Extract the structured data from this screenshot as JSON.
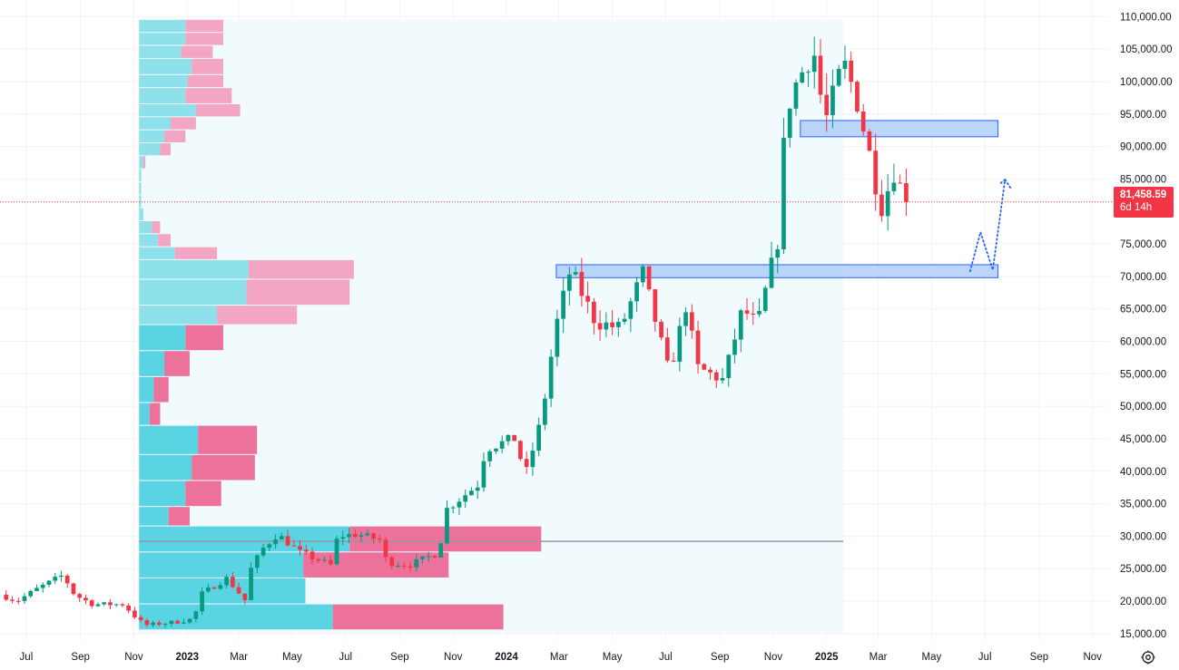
{
  "chart_data": {
    "type": "candlestick",
    "timeframe": "weekly",
    "y_axis": {
      "ticks": [
        "110,000.00",
        "105,000.00",
        "100,000.00",
        "95,000.00",
        "90,000.00",
        "85,000.00",
        "75,000.00",
        "70,000.00",
        "65,000.00",
        "60,000.00",
        "55,000.00",
        "50,000.00",
        "45,000.00",
        "40,000.00",
        "35,000.00",
        "30,000.00",
        "25,000.00",
        "20,000.00",
        "15,000.00"
      ],
      "tick_values": [
        110000,
        105000,
        100000,
        95000,
        90000,
        85000,
        75000,
        70000,
        65000,
        60000,
        55000,
        50000,
        45000,
        40000,
        35000,
        30000,
        25000,
        20000,
        15000
      ],
      "range": [
        14000,
        112000
      ],
      "position": "right"
    },
    "x_axis": {
      "labels": [
        {
          "text": "Jul",
          "date": "2022-07-01"
        },
        {
          "text": "Sep",
          "date": "2022-09-01"
        },
        {
          "text": "Nov",
          "date": "2022-11-01"
        },
        {
          "text": "2023",
          "date": "2023-01-01",
          "bold": true
        },
        {
          "text": "Mar",
          "date": "2023-03-01"
        },
        {
          "text": "May",
          "date": "2023-05-01"
        },
        {
          "text": "Jul",
          "date": "2023-07-01"
        },
        {
          "text": "Sep",
          "date": "2023-09-01"
        },
        {
          "text": "Nov",
          "date": "2023-11-01"
        },
        {
          "text": "2024",
          "date": "2024-01-01",
          "bold": true
        },
        {
          "text": "Mar",
          "date": "2024-03-01"
        },
        {
          "text": "May",
          "date": "2024-05-01"
        },
        {
          "text": "Jul",
          "date": "2024-07-01"
        },
        {
          "text": "Sep",
          "date": "2024-09-01"
        },
        {
          "text": "Nov",
          "date": "2024-11-01"
        },
        {
          "text": "2025",
          "date": "2025-01-01",
          "bold": true
        },
        {
          "text": "Mar",
          "date": "2025-03-01"
        },
        {
          "text": "May",
          "date": "2025-05-01"
        },
        {
          "text": "Jul",
          "date": "2025-07-01"
        },
        {
          "text": "Sep",
          "date": "2025-09-01"
        },
        {
          "text": "Nov",
          "date": "2025-11-01"
        }
      ],
      "range": [
        "2022-06-01",
        "2025-11-20"
      ]
    },
    "current_price": {
      "label": "81,458.59",
      "value": 81458.59,
      "countdown": "6d 14h"
    },
    "candle_anchors": [
      [
        "2022-06-01",
        21000
      ],
      [
        "2022-06-20",
        20000
      ],
      [
        "2022-07-15",
        22000
      ],
      [
        "2022-08-12",
        24000
      ],
      [
        "2022-08-25",
        21000
      ],
      [
        "2022-09-15",
        19500
      ],
      [
        "2022-10-20",
        19500
      ],
      [
        "2022-11-07",
        17000
      ],
      [
        "2022-11-15",
        16300
      ],
      [
        "2022-12-20",
        16800
      ],
      [
        "2023-01-09",
        17300
      ],
      [
        "2023-01-16",
        21000
      ],
      [
        "2023-02-15",
        23500
      ],
      [
        "2023-03-09",
        20000
      ],
      [
        "2023-03-15",
        25000
      ],
      [
        "2023-03-28",
        28000
      ],
      [
        "2023-04-14",
        30300
      ],
      [
        "2023-05-10",
        27500
      ],
      [
        "2023-06-15",
        25500
      ],
      [
        "2023-06-22",
        30000
      ],
      [
        "2023-07-14",
        30300
      ],
      [
        "2023-08-10",
        29400
      ],
      [
        "2023-08-17",
        26000
      ],
      [
        "2023-09-11",
        25500
      ],
      [
        "2023-10-16",
        27500
      ],
      [
        "2023-10-23",
        34000
      ],
      [
        "2023-11-30",
        38000
      ],
      [
        "2023-12-08",
        43500
      ],
      [
        "2024-01-10",
        45000
      ],
      [
        "2024-01-23",
        39500
      ],
      [
        "2024-02-10",
        48000
      ],
      [
        "2024-02-26",
        62000
      ],
      [
        "2024-03-14",
        71000
      ],
      [
        "2024-04-12",
        63000
      ],
      [
        "2024-05-10",
        62000
      ],
      [
        "2024-06-05",
        70500
      ],
      [
        "2024-07-05",
        55000
      ],
      [
        "2024-07-25",
        66000
      ],
      [
        "2024-08-05",
        56000
      ],
      [
        "2024-09-05",
        54000
      ],
      [
        "2024-09-27",
        65000
      ],
      [
        "2024-10-14",
        62500
      ],
      [
        "2024-10-28",
        70500
      ],
      [
        "2024-11-07",
        76000
      ],
      [
        "2024-11-13",
        90000
      ],
      [
        "2024-11-21",
        98000
      ],
      [
        "2024-12-17",
        105000
      ],
      [
        "2024-12-30",
        93500
      ],
      [
        "2025-01-20",
        103000
      ],
      [
        "2025-02-03",
        98000
      ],
      [
        "2025-02-24",
        86000
      ],
      [
        "2025-03-03",
        80000
      ],
      [
        "2025-03-20",
        86500
      ],
      [
        "2025-03-28",
        83000
      ],
      [
        "2025-04-04",
        81458.59
      ]
    ],
    "volume_profile": {
      "range_start": "2022-11-07",
      "range_end": "2025-01-20",
      "price_low": 15000,
      "price_high": 109500,
      "poc_price": 29200,
      "rows": [
        {
          "price_low": 107500,
          "price_high": 109500,
          "up": 0.22,
          "down": 0.18
        },
        {
          "price_low": 105500,
          "price_high": 107500,
          "up": 0.22,
          "down": 0.18
        },
        {
          "price_low": 103500,
          "price_high": 105500,
          "up": 0.2,
          "down": 0.15
        },
        {
          "price_low": 101000,
          "price_high": 103500,
          "up": 0.25,
          "down": 0.15
        },
        {
          "price_low": 99000,
          "price_high": 101000,
          "up": 0.23,
          "down": 0.17
        },
        {
          "price_low": 96500,
          "price_high": 99000,
          "up": 0.22,
          "down": 0.22
        },
        {
          "price_low": 94500,
          "price_high": 96500,
          "up": 0.27,
          "down": 0.21
        },
        {
          "price_low": 92500,
          "price_high": 94500,
          "up": 0.15,
          "down": 0.12
        },
        {
          "price_low": 90500,
          "price_high": 92500,
          "up": 0.12,
          "down": 0.1
        },
        {
          "price_low": 88500,
          "price_high": 90500,
          "up": 0.1,
          "down": 0.05
        },
        {
          "price_low": 86500,
          "price_high": 88500,
          "up": 0.02,
          "down": 0.01
        },
        {
          "price_low": 84500,
          "price_high": 86500,
          "up": 0.01,
          "down": 0.0
        },
        {
          "price_low": 82500,
          "price_high": 84500,
          "up": 0.01,
          "down": 0.0
        },
        {
          "price_low": 80500,
          "price_high": 82500,
          "up": 0.01,
          "down": 0.0
        },
        {
          "price_low": 78500,
          "price_high": 80500,
          "up": 0.02,
          "down": 0.0
        },
        {
          "price_low": 76500,
          "price_high": 78500,
          "up": 0.06,
          "down": 0.04
        },
        {
          "price_low": 74500,
          "price_high": 76500,
          "up": 0.09,
          "down": 0.06
        },
        {
          "price_low": 72500,
          "price_high": 74500,
          "up": 0.17,
          "down": 0.2
        },
        {
          "price_low": 69500,
          "price_high": 72500,
          "up": 0.52,
          "down": 0.5
        },
        {
          "price_low": 65500,
          "price_high": 69500,
          "up": 0.51,
          "down": 0.49
        },
        {
          "price_low": 62500,
          "price_high": 65500,
          "up": 0.37,
          "down": 0.38
        },
        {
          "price_low": 58500,
          "price_high": 62500,
          "up": 0.22,
          "down": 0.18
        },
        {
          "price_low": 54500,
          "price_high": 58500,
          "up": 0.12,
          "down": 0.12
        },
        {
          "price_low": 50500,
          "price_high": 54500,
          "up": 0.07,
          "down": 0.07
        },
        {
          "price_low": 47000,
          "price_high": 50500,
          "up": 0.05,
          "down": 0.05
        },
        {
          "price_low": 42500,
          "price_high": 47000,
          "up": 0.28,
          "down": 0.28
        },
        {
          "price_low": 38500,
          "price_high": 42500,
          "up": 0.25,
          "down": 0.3
        },
        {
          "price_low": 34500,
          "price_high": 38500,
          "up": 0.22,
          "down": 0.17
        },
        {
          "price_low": 31500,
          "price_high": 34500,
          "up": 0.14,
          "down": 0.1
        },
        {
          "price_low": 27500,
          "price_high": 31500,
          "up": 1.0,
          "down": 0.91
        },
        {
          "price_low": 23500,
          "price_high": 27500,
          "up": 0.78,
          "down": 0.69
        },
        {
          "price_low": 19500,
          "price_high": 23500,
          "up": 0.79,
          "down": 0.0
        },
        {
          "price_low": 15500,
          "price_high": 19500,
          "up": 0.92,
          "down": 0.81
        }
      ]
    },
    "zones": [
      {
        "price_low": 91500,
        "price_high": 94000,
        "start": "2024-12-02",
        "end": "2025-07-16"
      },
      {
        "price_low": 69800,
        "price_high": 71800,
        "start": "2024-02-27",
        "end": "2025-07-16"
      }
    ],
    "projection_path": [
      [
        "2025-06-14",
        70800
      ],
      [
        "2025-06-26",
        76800
      ],
      [
        "2025-07-10",
        71000
      ],
      [
        "2025-07-24",
        84900
      ],
      [
        "2025-07-31",
        83500
      ]
    ],
    "grid": true,
    "colors": {
      "up": "#089981",
      "down": "#f23645",
      "vp_up": "#5ad4e3",
      "vp_down": "#ec719b",
      "vp_up_light": "#8ee0eb",
      "vp_down_light": "#f2a6c3",
      "zone_fill": "#a6c8f7",
      "zone_stroke": "#2962ff",
      "projection": "#2962ff",
      "poc_line": "#9598a1",
      "range_bg": "#f1fafd",
      "grid": "#f0f3fa",
      "price_line": "#f23645"
    }
  },
  "icons": {
    "settings": "settings-gear-icon"
  }
}
